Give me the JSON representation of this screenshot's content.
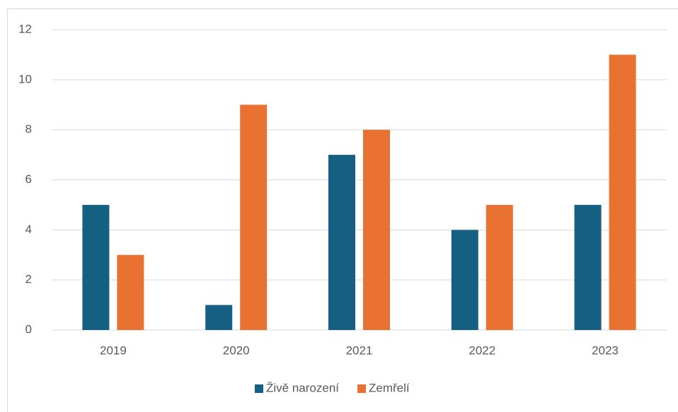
{
  "chart_data": {
    "type": "bar",
    "categories": [
      "2019",
      "2020",
      "2021",
      "2022",
      "2023"
    ],
    "series": [
      {
        "name": "Živě narození",
        "color": "#156082",
        "values": [
          5,
          1,
          7,
          4,
          5
        ]
      },
      {
        "name": "Zemřelí",
        "color": "#e97132",
        "values": [
          3,
          9,
          8,
          5,
          11
        ]
      }
    ],
    "ylim": [
      0,
      12
    ],
    "yticks": [
      0,
      2,
      4,
      6,
      8,
      10,
      12
    ],
    "grid": true,
    "legend": "bottom"
  }
}
